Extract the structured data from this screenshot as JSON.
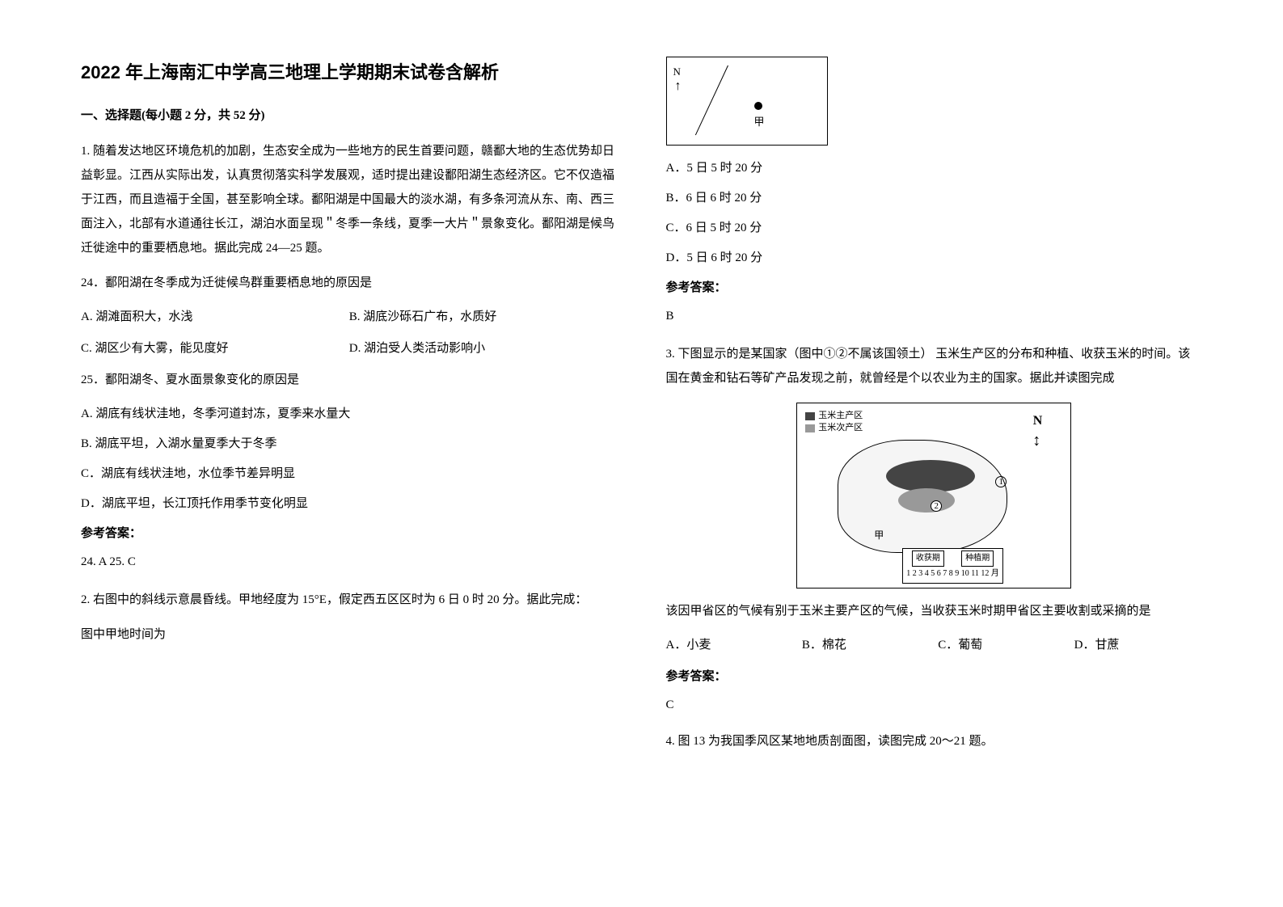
{
  "title": "2022 年上海南汇中学高三地理上学期期末试卷含解析",
  "section1_header": "一、选择题(每小题 2 分，共 52 分)",
  "q1": {
    "stem": "1. 随着发达地区环境危机的加剧，生态安全成为一些地方的民生首要问题，赣鄱大地的生态优势却日益彰显。江西从实际出发，认真贯彻落实科学发展观，适时提出建设鄱阳湖生态经济区。它不仅造福于江西，而且造福于全国，甚至影响全球。鄱阳湖是中国最大的淡水湖，有多条河流从东、南、西三面注入，北部有水道通往长江，湖泊水面呈现＂冬季一条线，夏季一大片＂景象变化。鄱阳湖是候鸟迁徙途中的重要栖息地。据此完成 24—25 题。",
    "q24": "24．鄱阳湖在冬季成为迁徙候鸟群重要栖息地的原因是",
    "q24_optA": "A. 湖滩面积大，水浅",
    "q24_optB": "B. 湖底沙砾石广布，水质好",
    "q24_optC": "C. 湖区少有大雾，能见度好",
    "q24_optD": "D. 湖泊受人类活动影响小",
    "q25": "25．鄱阳湖冬、夏水面景象变化的原因是",
    "q25_optA": "A. 湖底有线状洼地，冬季河道封冻，夏季来水量大",
    "q25_optB": "B. 湖底平坦，入湖水量夏季大于冬季",
    "q25_optC": "C．湖底有线状洼地，水位季节差异明显",
    "q25_optD": "D．湖底平坦，长江顶托作用季节变化明显",
    "answer_label": "参考答案：",
    "answer": "24. A  25. C"
  },
  "q2": {
    "stem": "2. 右图中的斜线示意晨昏线。甲地经度为 15°E，假定西五区区时为 6 日 0 时 20 分。据此完成：",
    "prompt": "图中甲地时间为",
    "figure": {
      "north": "N",
      "arrow": "↑",
      "point_label": "甲"
    },
    "optA": "A．5 日 5 时 20 分",
    "optB": "B．6 日 6 时 20 分",
    "optC": "C．6 日 5 时 20 分",
    "optD": "D．5 日 6 时 20 分",
    "answer_label": "参考答案：",
    "answer": "B"
  },
  "q3": {
    "stem": "3. 下图显示的是某国家（图中①②不属该国领土） 玉米生产区的分布和种植、收获玉米的时间。该国在黄金和钻石等矿产品发现之前，就曾经是个以农业为主的国家。据此并读图完成",
    "figure": {
      "legend1": "玉米主产区",
      "legend2": "玉米次产区",
      "north": "N",
      "num1": "1",
      "num2": "2",
      "jia": "甲",
      "harvest": "收获期",
      "plant": "种植期",
      "months": "1 2 3 4 5 6 7 8 9 10 11 12 月"
    },
    "prompt": "该因甲省区的气候有别于玉米主要产区的气候，当收获玉米时期甲省区主要收割或采摘的是",
    "optA": "A．小麦",
    "optB": "B．棉花",
    "optC": "C．葡萄",
    "optD": "D．甘蔗",
    "answer_label": "参考答案：",
    "answer": "C"
  },
  "q4": {
    "stem": "4. 图 13 为我国季风区某地地质剖面图，读图完成 20～21 题。"
  }
}
